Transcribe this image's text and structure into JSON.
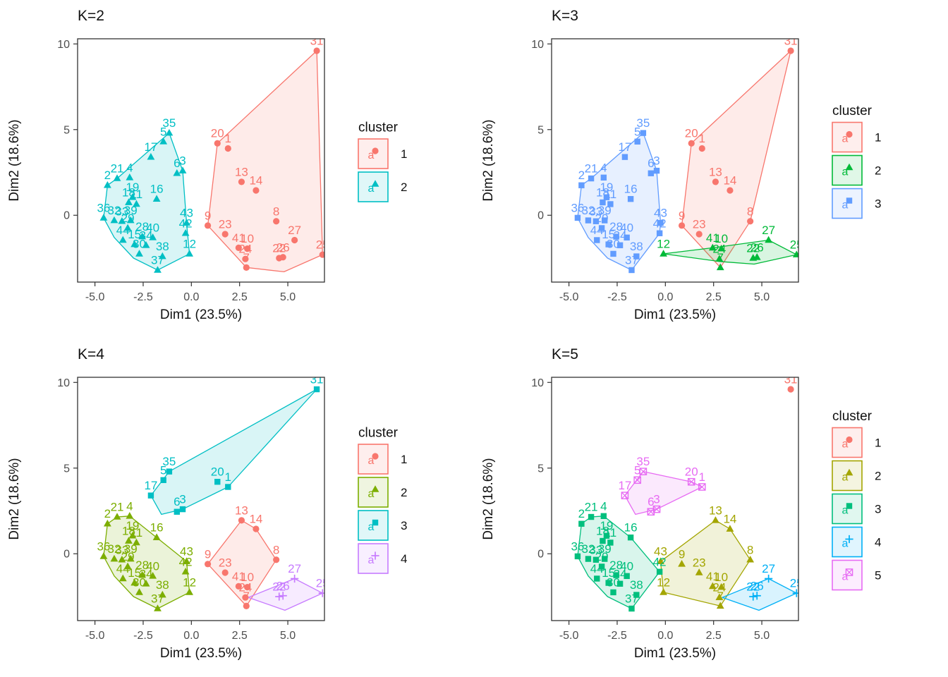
{
  "chart_data": {
    "type": "scatter",
    "subtype": "cluster-plot",
    "xlabel": "Dim1 (23.5%)",
    "ylabel": "Dim2 (18.6%)",
    "xlim": [
      -5.9,
      6.9
    ],
    "ylim": [
      -3.9,
      10.3
    ],
    "xticks": {
      "values": [
        -5.0,
        -2.5,
        0.0,
        2.5,
        5.0
      ],
      "labels": [
        "-5.0",
        "-2.5",
        "0.0",
        "2.5",
        "5.0"
      ]
    },
    "yticks": {
      "values": [
        0,
        5,
        10
      ],
      "labels": [
        "0",
        "5",
        "10"
      ]
    },
    "grid": "off",
    "legend_title": "cluster",
    "legend_position": "right",
    "legend_key_letter": "a",
    "points": [
      {
        "id": 1,
        "x": 1.9,
        "y": 3.9
      },
      {
        "id": 2,
        "x": -4.35,
        "y": 1.75
      },
      {
        "id": 3,
        "x": -0.45,
        "y": 2.6
      },
      {
        "id": 4,
        "x": -3.2,
        "y": 2.2
      },
      {
        "id": 5,
        "x": -1.45,
        "y": 4.3
      },
      {
        "id": 6,
        "x": -0.75,
        "y": 2.45
      },
      {
        "id": 7,
        "x": 2.85,
        "y": -3.05
      },
      {
        "id": 8,
        "x": 4.4,
        "y": -0.35
      },
      {
        "id": 9,
        "x": 0.85,
        "y": -0.6
      },
      {
        "id": 10,
        "x": 2.9,
        "y": -1.95
      },
      {
        "id": 11,
        "x": -2.85,
        "y": 0.65
      },
      {
        "id": 12,
        "x": -0.1,
        "y": -2.25
      },
      {
        "id": 13,
        "x": 2.6,
        "y": 1.95
      },
      {
        "id": 14,
        "x": 3.35,
        "y": 1.45
      },
      {
        "id": 15,
        "x": -2.95,
        "y": -1.7
      },
      {
        "id": 16,
        "x": -1.8,
        "y": 0.95
      },
      {
        "id": 17,
        "x": -2.1,
        "y": 3.4
      },
      {
        "id": 18,
        "x": -3.25,
        "y": 0.75
      },
      {
        "id": 19,
        "x": -3.05,
        "y": 1.05
      },
      {
        "id": 20,
        "x": 1.35,
        "y": 4.2
      },
      {
        "id": 21,
        "x": -3.85,
        "y": 2.15
      },
      {
        "id": 22,
        "x": 4.55,
        "y": -2.5
      },
      {
        "id": 23,
        "x": 1.75,
        "y": -1.1
      },
      {
        "id": 24,
        "x": 2.8,
        "y": -2.55
      },
      {
        "id": 25,
        "x": 6.8,
        "y": -2.3
      },
      {
        "id": 26,
        "x": 4.75,
        "y": -2.45
      },
      {
        "id": 27,
        "x": 5.35,
        "y": -1.45
      },
      {
        "id": 28,
        "x": -2.55,
        "y": -1.25
      },
      {
        "id": 29,
        "x": -3.3,
        "y": -0.75
      },
      {
        "id": 30,
        "x": -2.7,
        "y": -2.25
      },
      {
        "id": 31,
        "x": 6.5,
        "y": 9.6
      },
      {
        "id": 32,
        "x": -4.0,
        "y": -0.3
      },
      {
        "id": 33,
        "x": -3.6,
        "y": -0.35
      },
      {
        "id": 34,
        "x": -2.35,
        "y": -1.75
      },
      {
        "id": 35,
        "x": -1.15,
        "y": 4.8
      },
      {
        "id": 36,
        "x": -4.55,
        "y": -0.15
      },
      {
        "id": 37,
        "x": -1.75,
        "y": -3.2
      },
      {
        "id": 38,
        "x": -1.5,
        "y": -2.4
      },
      {
        "id": 39,
        "x": -3.15,
        "y": -0.3
      },
      {
        "id": 40,
        "x": -2.0,
        "y": -1.3
      },
      {
        "id": 41,
        "x": 2.45,
        "y": -1.9
      },
      {
        "id": 42,
        "x": -0.3,
        "y": -1.05
      },
      {
        "id": 43,
        "x": -0.25,
        "y": -0.45
      },
      {
        "id": 44,
        "x": -3.55,
        "y": -1.45
      }
    ],
    "panels": [
      {
        "title": "K=2",
        "clusters": [
          {
            "label": "1",
            "color": "#F8766D",
            "shape": "circle",
            "members": [
              1,
              7,
              8,
              9,
              10,
              13,
              14,
              20,
              22,
              23,
              24,
              25,
              26,
              27,
              31,
              41
            ],
            "hull": [
              [
                1.35,
                4.2
              ],
              [
                6.5,
                9.6
              ],
              [
                6.8,
                -2.3
              ],
              [
                4.8,
                -3.3
              ],
              [
                2.85,
                -3.05
              ],
              [
                0.85,
                -0.6
              ]
            ]
          },
          {
            "label": "2",
            "color": "#00BFC4",
            "shape": "triangle",
            "members": [
              2,
              3,
              4,
              5,
              6,
              11,
              12,
              15,
              16,
              17,
              18,
              19,
              21,
              28,
              29,
              30,
              32,
              33,
              34,
              35,
              36,
              37,
              38,
              39,
              40,
              42,
              43,
              44
            ],
            "hull": [
              [
                -4.55,
                -0.15
              ],
              [
                -4.35,
                1.75
              ],
              [
                -3.85,
                2.15
              ],
              [
                -1.15,
                4.8
              ],
              [
                -0.45,
                2.6
              ],
              [
                -0.25,
                -0.45
              ],
              [
                -0.1,
                -2.25
              ],
              [
                -1.75,
                -3.2
              ],
              [
                -3.0,
                -2.5
              ],
              [
                -4.0,
                -1.3
              ]
            ]
          }
        ]
      },
      {
        "title": "K=3",
        "clusters": [
          {
            "label": "1",
            "color": "#F8766D",
            "shape": "circle",
            "members": [
              1,
              8,
              9,
              13,
              14,
              20,
              23,
              31
            ],
            "hull": [
              [
                1.35,
                4.2
              ],
              [
                6.5,
                9.6
              ],
              [
                4.4,
                -0.35
              ],
              [
                2.85,
                -3.05
              ],
              [
                0.85,
                -0.6
              ]
            ]
          },
          {
            "label": "2",
            "color": "#00BA38",
            "shape": "triangle",
            "members": [
              7,
              10,
              12,
              22,
              24,
              25,
              26,
              27,
              41
            ],
            "hull": [
              [
                -0.1,
                -2.25
              ],
              [
                2.45,
                -1.9
              ],
              [
                5.35,
                -1.45
              ],
              [
                6.8,
                -2.3
              ],
              [
                4.6,
                -2.85
              ],
              [
                2.8,
                -2.7
              ]
            ]
          },
          {
            "label": "3",
            "color": "#619CFF",
            "shape": "square",
            "members": [
              2,
              3,
              4,
              5,
              6,
              11,
              15,
              16,
              17,
              18,
              19,
              21,
              28,
              29,
              30,
              32,
              33,
              34,
              35,
              36,
              37,
              38,
              39,
              40,
              42,
              43,
              44
            ],
            "hull": [
              [
                -4.55,
                -0.15
              ],
              [
                -4.35,
                1.75
              ],
              [
                -3.85,
                2.15
              ],
              [
                -1.15,
                4.8
              ],
              [
                -0.45,
                2.6
              ],
              [
                -0.25,
                -0.45
              ],
              [
                -0.3,
                -1.05
              ],
              [
                -1.75,
                -3.2
              ],
              [
                -3.0,
                -2.5
              ],
              [
                -4.0,
                -1.3
              ]
            ]
          }
        ]
      },
      {
        "title": "K=4",
        "clusters": [
          {
            "label": "1",
            "color": "#F8766D",
            "shape": "circle",
            "members": [
              7,
              8,
              9,
              10,
              13,
              14,
              23,
              24,
              41
            ],
            "hull": [
              [
                0.85,
                -0.6
              ],
              [
                2.6,
                1.95
              ],
              [
                3.35,
                1.45
              ],
              [
                4.4,
                -0.35
              ],
              [
                2.85,
                -3.05
              ]
            ]
          },
          {
            "label": "2",
            "color": "#7CAE00",
            "shape": "triangle",
            "members": [
              2,
              4,
              11,
              12,
              15,
              16,
              18,
              19,
              21,
              28,
              29,
              30,
              32,
              33,
              34,
              36,
              37,
              38,
              39,
              40,
              42,
              43,
              44
            ],
            "hull": [
              [
                -4.55,
                -0.15
              ],
              [
                -4.35,
                1.75
              ],
              [
                -3.85,
                2.15
              ],
              [
                -3.2,
                2.2
              ],
              [
                -1.8,
                0.95
              ],
              [
                -0.25,
                -0.45
              ],
              [
                -0.1,
                -2.25
              ],
              [
                -1.75,
                -3.2
              ],
              [
                -3.0,
                -2.5
              ],
              [
                -4.0,
                -1.3
              ]
            ]
          },
          {
            "label": "3",
            "color": "#00BFC4",
            "shape": "square",
            "members": [
              1,
              3,
              5,
              6,
              17,
              20,
              31,
              35
            ],
            "hull": [
              [
                -2.1,
                3.4
              ],
              [
                -1.15,
                4.8
              ],
              [
                6.5,
                9.6
              ],
              [
                1.9,
                3.9
              ],
              [
                -0.45,
                2.6
              ],
              [
                -1.55,
                2.3
              ]
            ]
          },
          {
            "label": "4",
            "color": "#C77CFF",
            "shape": "plus",
            "members": [
              22,
              25,
              26,
              27
            ],
            "hull": [
              [
                2.95,
                -2.55
              ],
              [
                5.35,
                -1.45
              ],
              [
                6.8,
                -2.3
              ],
              [
                4.85,
                -3.3
              ]
            ]
          }
        ]
      },
      {
        "title": "K=5",
        "clusters": [
          {
            "label": "1",
            "color": "#F8766D",
            "shape": "circle",
            "members": [
              31
            ],
            "hull": []
          },
          {
            "label": "2",
            "color": "#A3A500",
            "shape": "triangle",
            "members": [
              7,
              8,
              9,
              10,
              12,
              13,
              14,
              23,
              24,
              41,
              43
            ],
            "hull": [
              [
                -0.25,
                -0.45
              ],
              [
                2.6,
                1.95
              ],
              [
                3.35,
                1.45
              ],
              [
                4.4,
                -0.35
              ],
              [
                2.85,
                -3.05
              ],
              [
                -0.1,
                -2.25
              ]
            ]
          },
          {
            "label": "3",
            "color": "#00BF7D",
            "shape": "square",
            "members": [
              2,
              4,
              11,
              15,
              16,
              18,
              19,
              21,
              28,
              29,
              30,
              32,
              33,
              34,
              36,
              37,
              38,
              39,
              40,
              42,
              44
            ],
            "hull": [
              [
                -4.55,
                -0.15
              ],
              [
                -4.35,
                1.75
              ],
              [
                -3.85,
                2.15
              ],
              [
                -3.2,
                2.2
              ],
              [
                -1.8,
                0.95
              ],
              [
                -0.3,
                -1.05
              ],
              [
                -1.75,
                -3.2
              ],
              [
                -3.0,
                -2.5
              ],
              [
                -4.0,
                -1.3
              ]
            ]
          },
          {
            "label": "4",
            "color": "#00B0F6",
            "shape": "plus",
            "members": [
              22,
              25,
              26,
              27
            ],
            "hull": [
              [
                2.95,
                -2.55
              ],
              [
                5.35,
                -1.45
              ],
              [
                6.8,
                -2.3
              ],
              [
                4.85,
                -3.3
              ]
            ]
          },
          {
            "label": "5",
            "color": "#E76BF3",
            "shape": "boxed-x",
            "members": [
              1,
              3,
              5,
              6,
              17,
              20,
              35
            ],
            "hull": [
              [
                -2.1,
                3.4
              ],
              [
                -1.15,
                4.8
              ],
              [
                1.35,
                4.2
              ],
              [
                1.9,
                3.9
              ],
              [
                -0.45,
                2.6
              ],
              [
                -1.55,
                2.3
              ]
            ]
          }
        ]
      }
    ],
    "style": {
      "panel_border_color": "#333333",
      "tick_color": "#333333",
      "tick_label_color": "#4d4d4d",
      "axis_title_color": "#111111",
      "hull_fill_opacity": 0.15,
      "legend_label_color": "#111111"
    }
  }
}
